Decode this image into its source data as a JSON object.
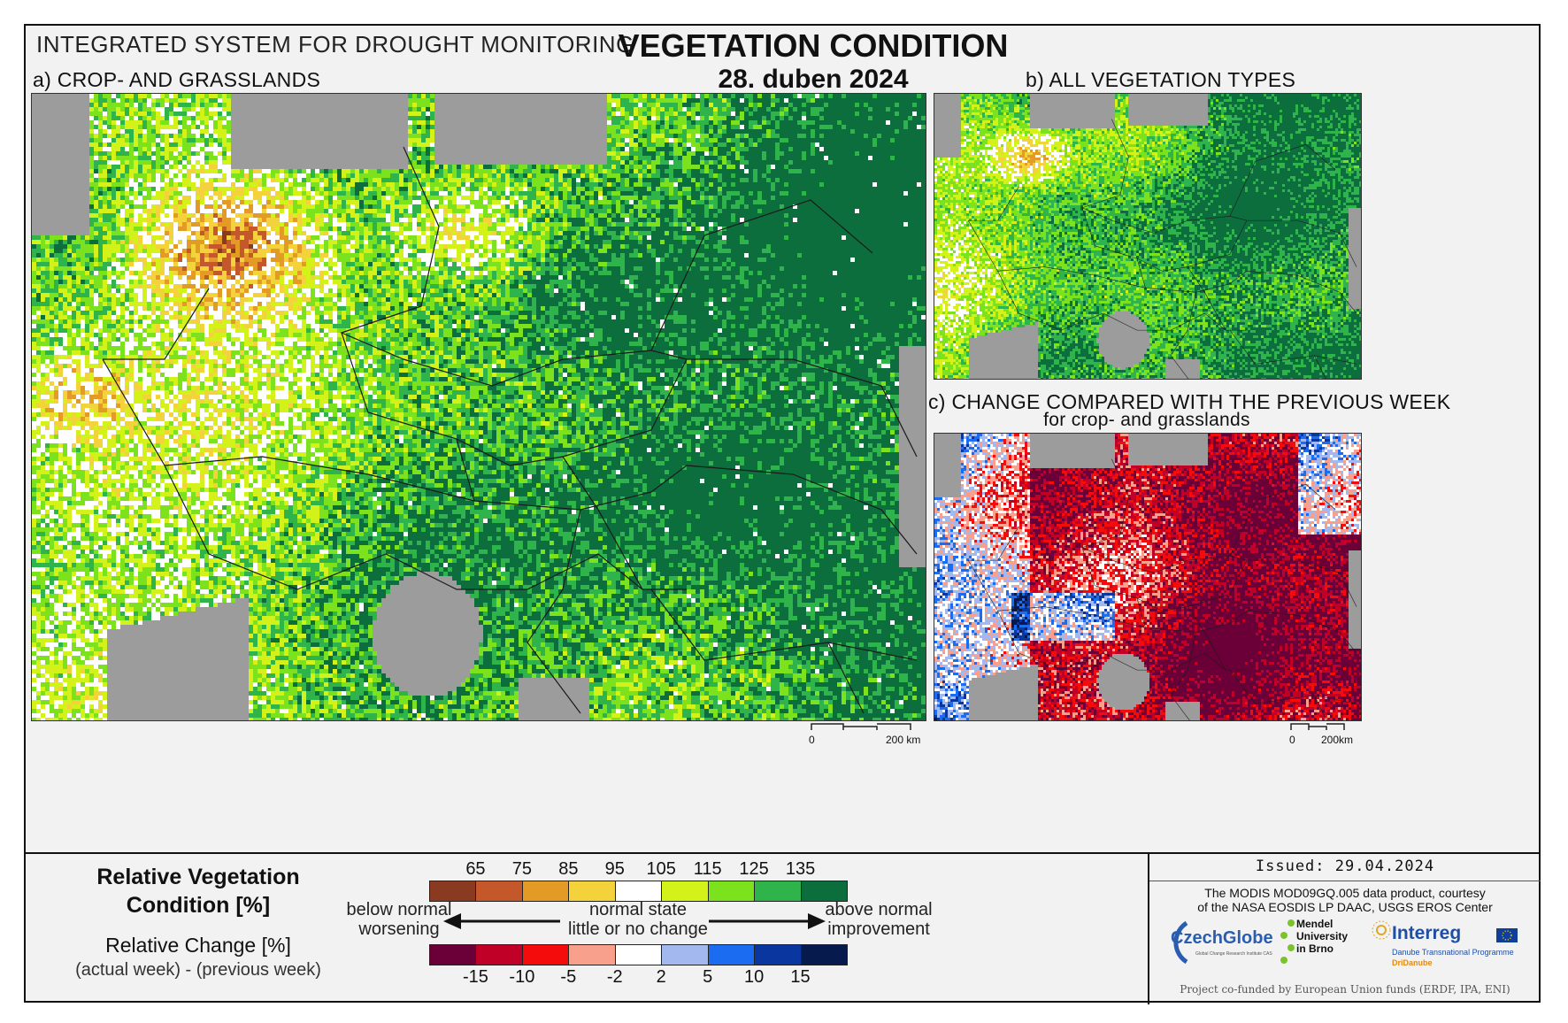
{
  "header": {
    "system": "INTEGRATED SYSTEM FOR DROUGHT MONITORING",
    "title": "VEGETATION CONDITION",
    "date": "28. duben 2024"
  },
  "panels": {
    "a": {
      "label": "a) CROP- AND GRASSLANDS",
      "scale": {
        "zero": "0",
        "end": "200 km"
      }
    },
    "b": {
      "label": "b) ALL VEGETATION TYPES"
    },
    "c": {
      "label": "c) CHANGE COMPARED WITH THE PREVIOUS WEEK",
      "sublabel": "for crop- and grasslands",
      "scale": {
        "zero": "0",
        "end": "200km"
      }
    }
  },
  "legend": {
    "rvc_title_line1": "Relative Vegetation",
    "rvc_title_line2": "Condition [%]",
    "rc_title": "Relative Change [%]",
    "rc_subtitle": "(actual week) - (previous week)",
    "rvc_ticks": [
      "65",
      "75",
      "85",
      "95",
      "105",
      "115",
      "125",
      "135"
    ],
    "rvc_colors": [
      "#8b3a22",
      "#c4582a",
      "#e39b25",
      "#f4d23b",
      "#ffffff",
      "#d2f21a",
      "#7ce21e",
      "#2eb44a",
      "#0c6e3d"
    ],
    "rc_ticks": [
      "-15",
      "-10",
      "-5",
      "-2",
      "2",
      "5",
      "10",
      "15"
    ],
    "rc_colors": [
      "#6a0037",
      "#c00027",
      "#f40c0c",
      "#f8a08c",
      "#ffffff",
      "#a4b8f0",
      "#1c6cf2",
      "#0a36a0",
      "#061a4e"
    ],
    "below_line1": "below normal",
    "below_line2": "worsening",
    "normal_line1": "normal state",
    "normal_line2": "little or no change",
    "above_line1": "above normal",
    "above_line2": "improvement"
  },
  "issued": {
    "text": "Issued: 29.04.2024",
    "credit_line1": "The MODIS MOD09GQ.005 data product, courtesy",
    "credit_line2": "of the NASA EOSDIS LP DAAC, USGS EROS Center",
    "logo_czechglobe": "CzechGlobe",
    "logo_czechglobe_sub": "Global Change Research Institute CAS",
    "logo_mendel_1": "Mendel",
    "logo_mendel_2": "University",
    "logo_mendel_3": "in Brno",
    "logo_interreg": "Interreg",
    "logo_interreg_sub1": "Danube Transnational Programme",
    "logo_interreg_sub2": "DriDanube",
    "funding": "Project co-funded by European Union funds (ERDF, IPA, ENI)"
  }
}
